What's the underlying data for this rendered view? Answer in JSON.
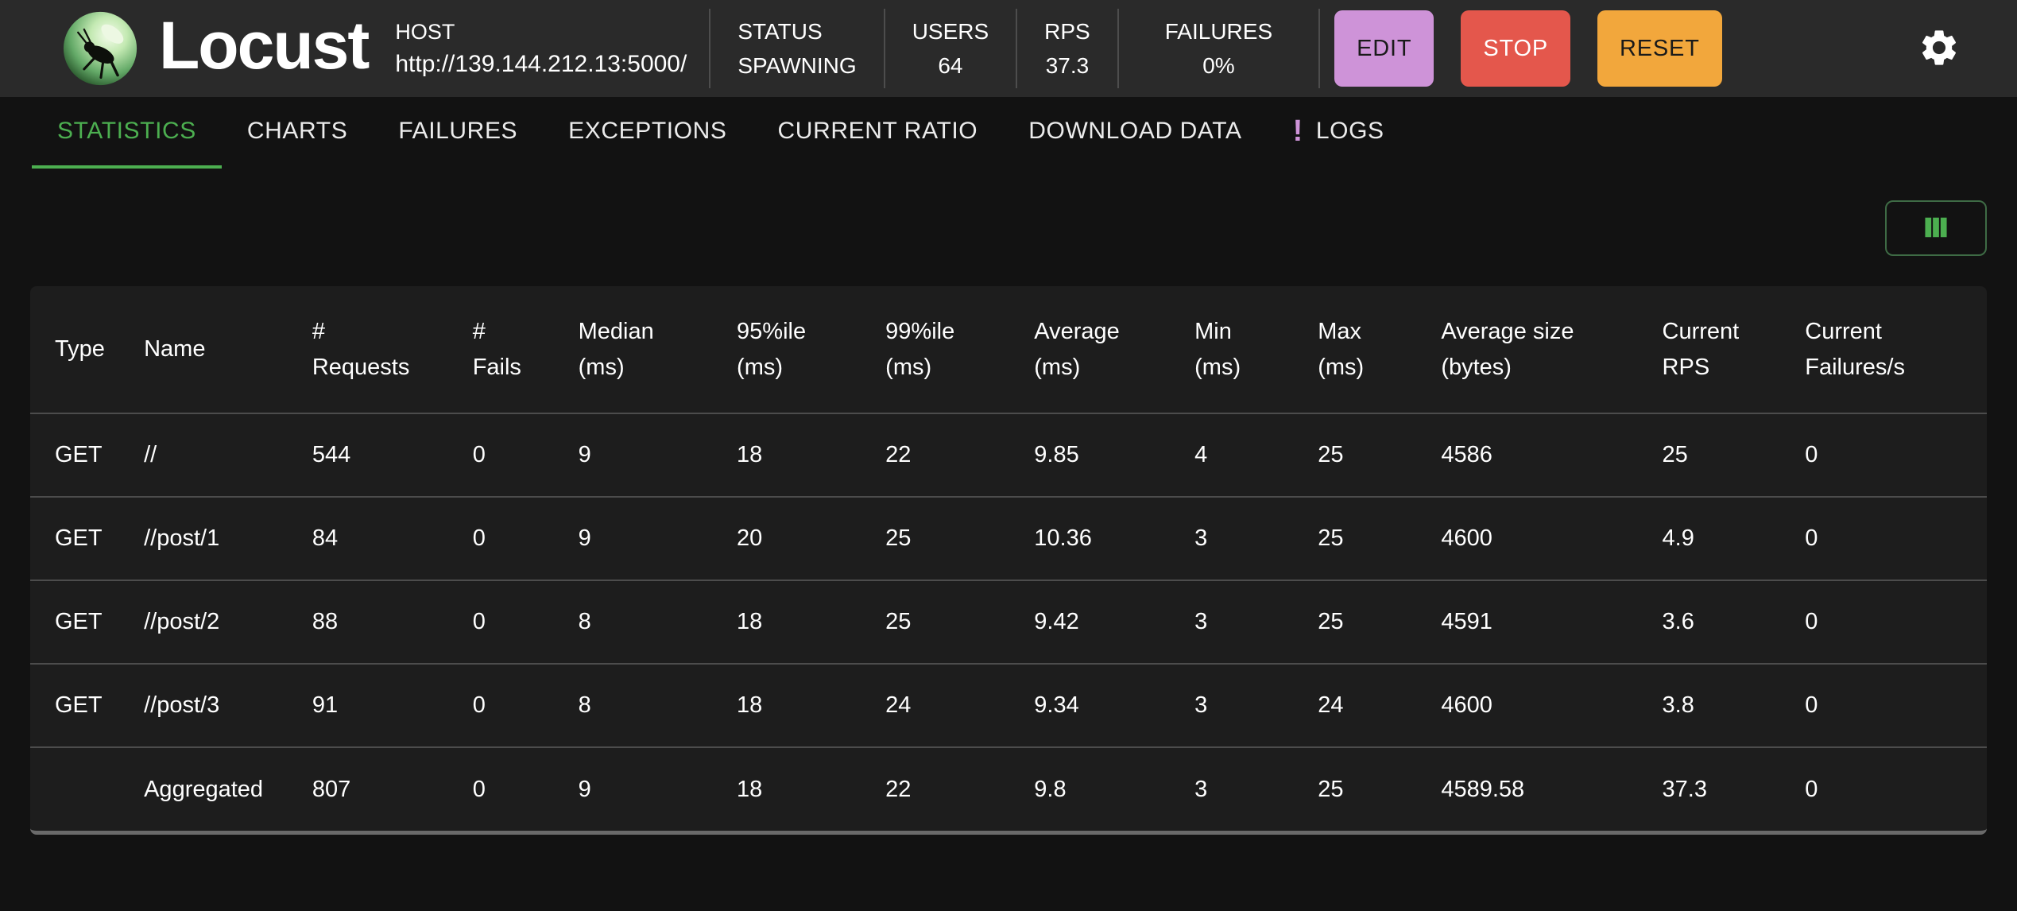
{
  "app": {
    "title": "Locust"
  },
  "header": {
    "host_label": "HOST",
    "host_url": "http://139.144.212.13:5000/",
    "stats": [
      {
        "label": "STATUS",
        "value": "SPAWNING"
      },
      {
        "label": "USERS",
        "value": "64"
      },
      {
        "label": "RPS",
        "value": "37.3"
      },
      {
        "label": "FAILURES",
        "value": "0%"
      }
    ],
    "actions": [
      {
        "label": "EDIT",
        "bg": "#ce93d8",
        "fg": "#1a1a1a"
      },
      {
        "label": "STOP",
        "bg": "#e4574c",
        "fg": "#ffffff"
      },
      {
        "label": "RESET",
        "bg": "#f2a73c",
        "fg": "#1a1a1a"
      }
    ],
    "settings_icon": "gear-icon",
    "logo_icon": "locust-logo"
  },
  "tabs": [
    {
      "label": "STATISTICS",
      "active": true
    },
    {
      "label": "CHARTS"
    },
    {
      "label": "FAILURES"
    },
    {
      "label": "EXCEPTIONS"
    },
    {
      "label": "CURRENT RATIO"
    },
    {
      "label": "DOWNLOAD DATA"
    },
    {
      "label": "LOGS",
      "badge": "!"
    }
  ],
  "toolbar": {
    "column_selector_icon": "view-columns-icon"
  },
  "table": {
    "columns": [
      [
        "Type"
      ],
      [
        "Name"
      ],
      [
        "#",
        "Requests"
      ],
      [
        "#",
        "Fails"
      ],
      [
        "Median",
        "(ms)"
      ],
      [
        "95%ile",
        "(ms)"
      ],
      [
        "99%ile",
        "(ms)"
      ],
      [
        "Average",
        "(ms)"
      ],
      [
        "Min",
        "(ms)"
      ],
      [
        "Max",
        "(ms)"
      ],
      [
        "Average size",
        "(bytes)"
      ],
      [
        "Current",
        "RPS"
      ],
      [
        "Current",
        "Failures/s"
      ]
    ],
    "rows": [
      [
        "GET",
        "//",
        "544",
        "0",
        "9",
        "18",
        "22",
        "9.85",
        "4",
        "25",
        "4586",
        "25",
        "0"
      ],
      [
        "GET",
        "//post/1",
        "84",
        "0",
        "9",
        "20",
        "25",
        "10.36",
        "3",
        "25",
        "4600",
        "4.9",
        "0"
      ],
      [
        "GET",
        "//post/2",
        "88",
        "0",
        "8",
        "18",
        "25",
        "9.42",
        "3",
        "25",
        "4591",
        "3.6",
        "0"
      ],
      [
        "GET",
        "//post/3",
        "91",
        "0",
        "8",
        "18",
        "24",
        "9.34",
        "3",
        "24",
        "4600",
        "3.8",
        "0"
      ],
      [
        "",
        "Aggregated",
        "807",
        "0",
        "9",
        "18",
        "22",
        "9.8",
        "3",
        "25",
        "4589.58",
        "37.3",
        "0"
      ]
    ]
  },
  "colors": {
    "accent_green": "#4caf50",
    "badge_purple": "#ce93d8",
    "edit_button": "#ce93d8",
    "stop_button": "#e4574c",
    "reset_button": "#f2a73c",
    "appbar_bg": "#2a2a2a",
    "page_bg": "#121212",
    "card_bg": "#1d1d1d"
  }
}
